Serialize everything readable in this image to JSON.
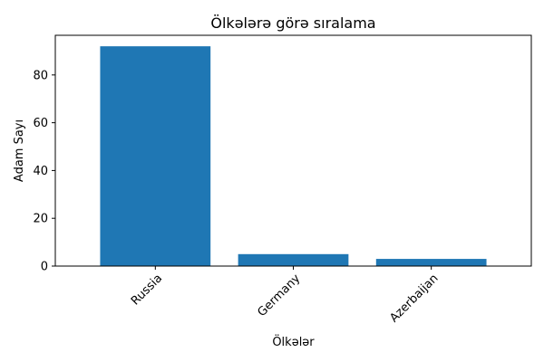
{
  "chart_data": {
    "type": "bar",
    "title": "Ölkələrə görə sıralama",
    "xlabel": "Ölkələr",
    "ylabel": "Adam Sayı",
    "categories": [
      "Russia",
      "Germany",
      "Azerbaijan"
    ],
    "values": [
      92,
      5,
      3
    ],
    "ylim": [
      0,
      96.6
    ],
    "yticks": [
      0,
      20,
      40,
      60,
      80
    ],
    "grid": false,
    "bar_color": "#1f77b4"
  }
}
